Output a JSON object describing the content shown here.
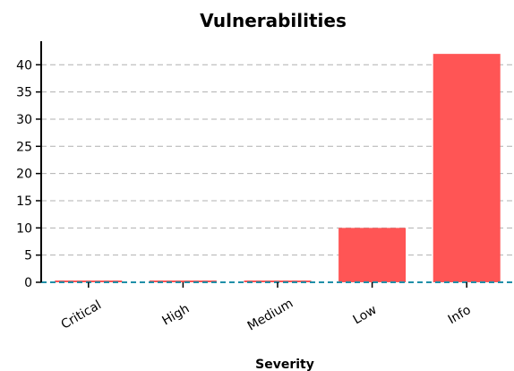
{
  "chart_data": {
    "type": "bar",
    "title": "Vulnerabilities",
    "xlabel": "Severity",
    "ylabel": "",
    "categories": [
      "Critical",
      "High",
      "Medium",
      "Low",
      "Info"
    ],
    "values": [
      0,
      0,
      0,
      10,
      42
    ],
    "ylim": [
      0,
      44
    ],
    "yticks": [
      0,
      5,
      10,
      15,
      20,
      25,
      30,
      35,
      40
    ],
    "grid": true,
    "bar_color": "#ff5555",
    "zero_line_color": "#1f8fa8"
  }
}
